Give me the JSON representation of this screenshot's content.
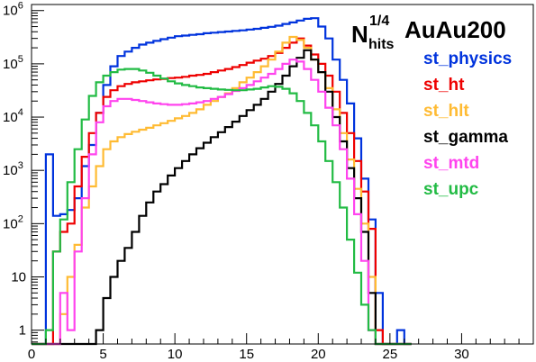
{
  "chart_data": {
    "type": "histogram",
    "title": {
      "main": "N",
      "superscript": "1/4",
      "subscript": "hits",
      "suffix": "AuAu200"
    },
    "x_axis": {
      "range": [
        0,
        35
      ],
      "scale": "linear",
      "tick_labels": [
        "0",
        "5",
        "10",
        "15",
        "20",
        "25",
        "30"
      ]
    },
    "y_axis": {
      "range": [
        0.55,
        1300000
      ],
      "scale": "log",
      "tick_labels": [
        "1",
        "10",
        "10^2",
        "10^3",
        "10^4",
        "10^5",
        "10^6"
      ]
    },
    "grid": false,
    "legend_position": "top-right",
    "bin_width": 0.5,
    "x_start": 0,
    "series": [
      {
        "name": "st_physics",
        "color": "#0033dd",
        "values": [
          0.5,
          0.5,
          2000,
          140,
          150,
          180,
          300,
          1200,
          3000,
          12000,
          40000,
          90000,
          140000,
          170000,
          200000,
          230000,
          250000,
          270000,
          290000,
          310000,
          330000,
          340000,
          350000,
          360000,
          375000,
          385000,
          395000,
          405000,
          415000,
          425000,
          440000,
          455000,
          475000,
          495000,
          520000,
          560000,
          600000,
          650000,
          700000,
          720000,
          500000,
          300000,
          120000,
          50000,
          18000,
          4000,
          700,
          120,
          5,
          0.5,
          0.5,
          1,
          0.5
        ]
      },
      {
        "name": "st_ht",
        "color": "#ee0000",
        "values": [
          0.5,
          0.5,
          0.5,
          30,
          70,
          100,
          500,
          1800,
          5000,
          12000,
          24000,
          32000,
          38000,
          42000,
          45000,
          47000,
          49000,
          51000,
          52000,
          54000,
          55000,
          57000,
          60000,
          62000,
          65000,
          70000,
          75000,
          80000,
          87000,
          95000,
          105000,
          115000,
          125000,
          140000,
          160000,
          200000,
          250000,
          300000,
          220000,
          150000,
          100000,
          60000,
          30000,
          12000,
          5000,
          1500,
          400,
          80,
          1,
          0.5,
          0.5,
          0.5,
          0.5
        ]
      },
      {
        "name": "st_hlt",
        "color": "#ffbb33",
        "values": [
          0.5,
          0.5,
          0.5,
          0.5,
          2,
          10,
          40,
          200,
          500,
          1200,
          2500,
          3500,
          4200,
          4800,
          5300,
          5800,
          6300,
          7000,
          7700,
          8500,
          9500,
          10500,
          12000,
          14000,
          17000,
          20000,
          24000,
          28000,
          35000,
          45000,
          55000,
          70000,
          90000,
          120000,
          170000,
          250000,
          320000,
          280000,
          200000,
          120000,
          70000,
          35000,
          14000,
          5000,
          1600,
          450,
          100,
          10,
          0.5,
          0.5,
          0.5,
          0.5,
          0.5
        ]
      },
      {
        "name": "st_gamma",
        "color": "#000000",
        "values": [
          0.5,
          0.5,
          0.5,
          0.5,
          0.5,
          0.5,
          0.5,
          0.5,
          0.5,
          1,
          4,
          10,
          20,
          35,
          70,
          140,
          250,
          400,
          550,
          800,
          1100,
          1500,
          2000,
          2600,
          3300,
          4200,
          5200,
          6500,
          8200,
          10500,
          13500,
          17000,
          22000,
          30000,
          42000,
          60000,
          90000,
          130000,
          180000,
          120000,
          70000,
          30000,
          10000,
          3500,
          1100,
          300,
          70,
          5,
          0.5,
          0.5,
          0.5,
          0.5,
          0.5
        ]
      },
      {
        "name": "st_mtd",
        "color": "#ff44ee",
        "values": [
          0.5,
          0.5,
          0.5,
          0.5,
          5,
          1,
          30,
          300,
          2000,
          8000,
          16000,
          20000,
          22000,
          22000,
          21000,
          20000,
          19000,
          18000,
          17500,
          17000,
          17000,
          17500,
          18000,
          19000,
          20000,
          22000,
          24000,
          27000,
          31000,
          35000,
          40000,
          47000,
          55000,
          65000,
          80000,
          100000,
          120000,
          110000,
          80000,
          50000,
          30000,
          15000,
          7000,
          2500,
          700,
          150,
          20,
          1,
          0.5,
          0.5,
          0.5,
          0.5,
          0.5
        ]
      },
      {
        "name": "st_upc",
        "color": "#22bb44",
        "values": [
          0.5,
          0.5,
          1,
          30,
          120,
          600,
          2500,
          9000,
          25000,
          45000,
          60000,
          70000,
          78000,
          80000,
          80000,
          75000,
          68000,
          60000,
          53000,
          47000,
          43000,
          40000,
          38000,
          36000,
          35000,
          34000,
          33000,
          32500,
          32000,
          32000,
          33000,
          34000,
          36000,
          38000,
          37000,
          34000,
          28000,
          20000,
          12000,
          7000,
          3500,
          1500,
          600,
          200,
          50,
          12,
          3,
          1,
          0.5,
          0.5,
          0.5,
          0.5,
          0.5
        ]
      }
    ]
  }
}
